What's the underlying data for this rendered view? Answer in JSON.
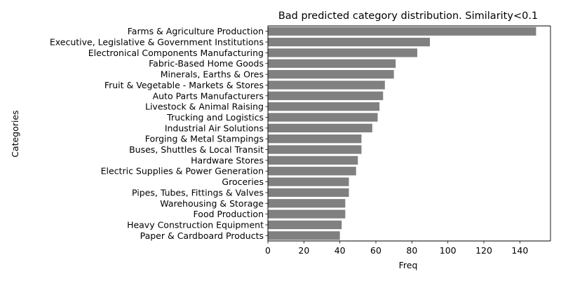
{
  "chart_data": {
    "type": "bar",
    "orientation": "horizontal",
    "title": "Bad predicted category distribution. Similarity<0.1",
    "xlabel": "Freq",
    "ylabel": "Categories",
    "xlim": [
      0,
      157
    ],
    "xticks": [
      0,
      20,
      40,
      60,
      80,
      100,
      120,
      140
    ],
    "bar_color": "#808080",
    "categories": [
      "Farms & Agriculture Production",
      "Executive, Legislative & Government Institutions",
      "Electronical Components Manufacturing",
      "Fabric-Based Home Goods",
      "Minerals, Earths & Ores",
      "Fruit & Vegetable - Markets & Stores",
      "Auto Parts Manufacturers",
      "Livestock & Animal Raising",
      "Trucking and Logistics",
      "Industrial Air Solutions",
      "Forging & Metal Stampings",
      "Buses, Shuttles & Local Transit",
      "Hardware Stores",
      "Electric Supplies & Power Generation",
      "Groceries",
      "Pipes, Tubes, Fittings & Valves",
      "Warehousing & Storage",
      "Food Production",
      "Heavy Construction Equipment",
      "Paper & Cardboard Products"
    ],
    "values": [
      149,
      90,
      83,
      71,
      70,
      65,
      64,
      62,
      61,
      58,
      52,
      52,
      50,
      49,
      45,
      45,
      43,
      43,
      41,
      40
    ]
  }
}
